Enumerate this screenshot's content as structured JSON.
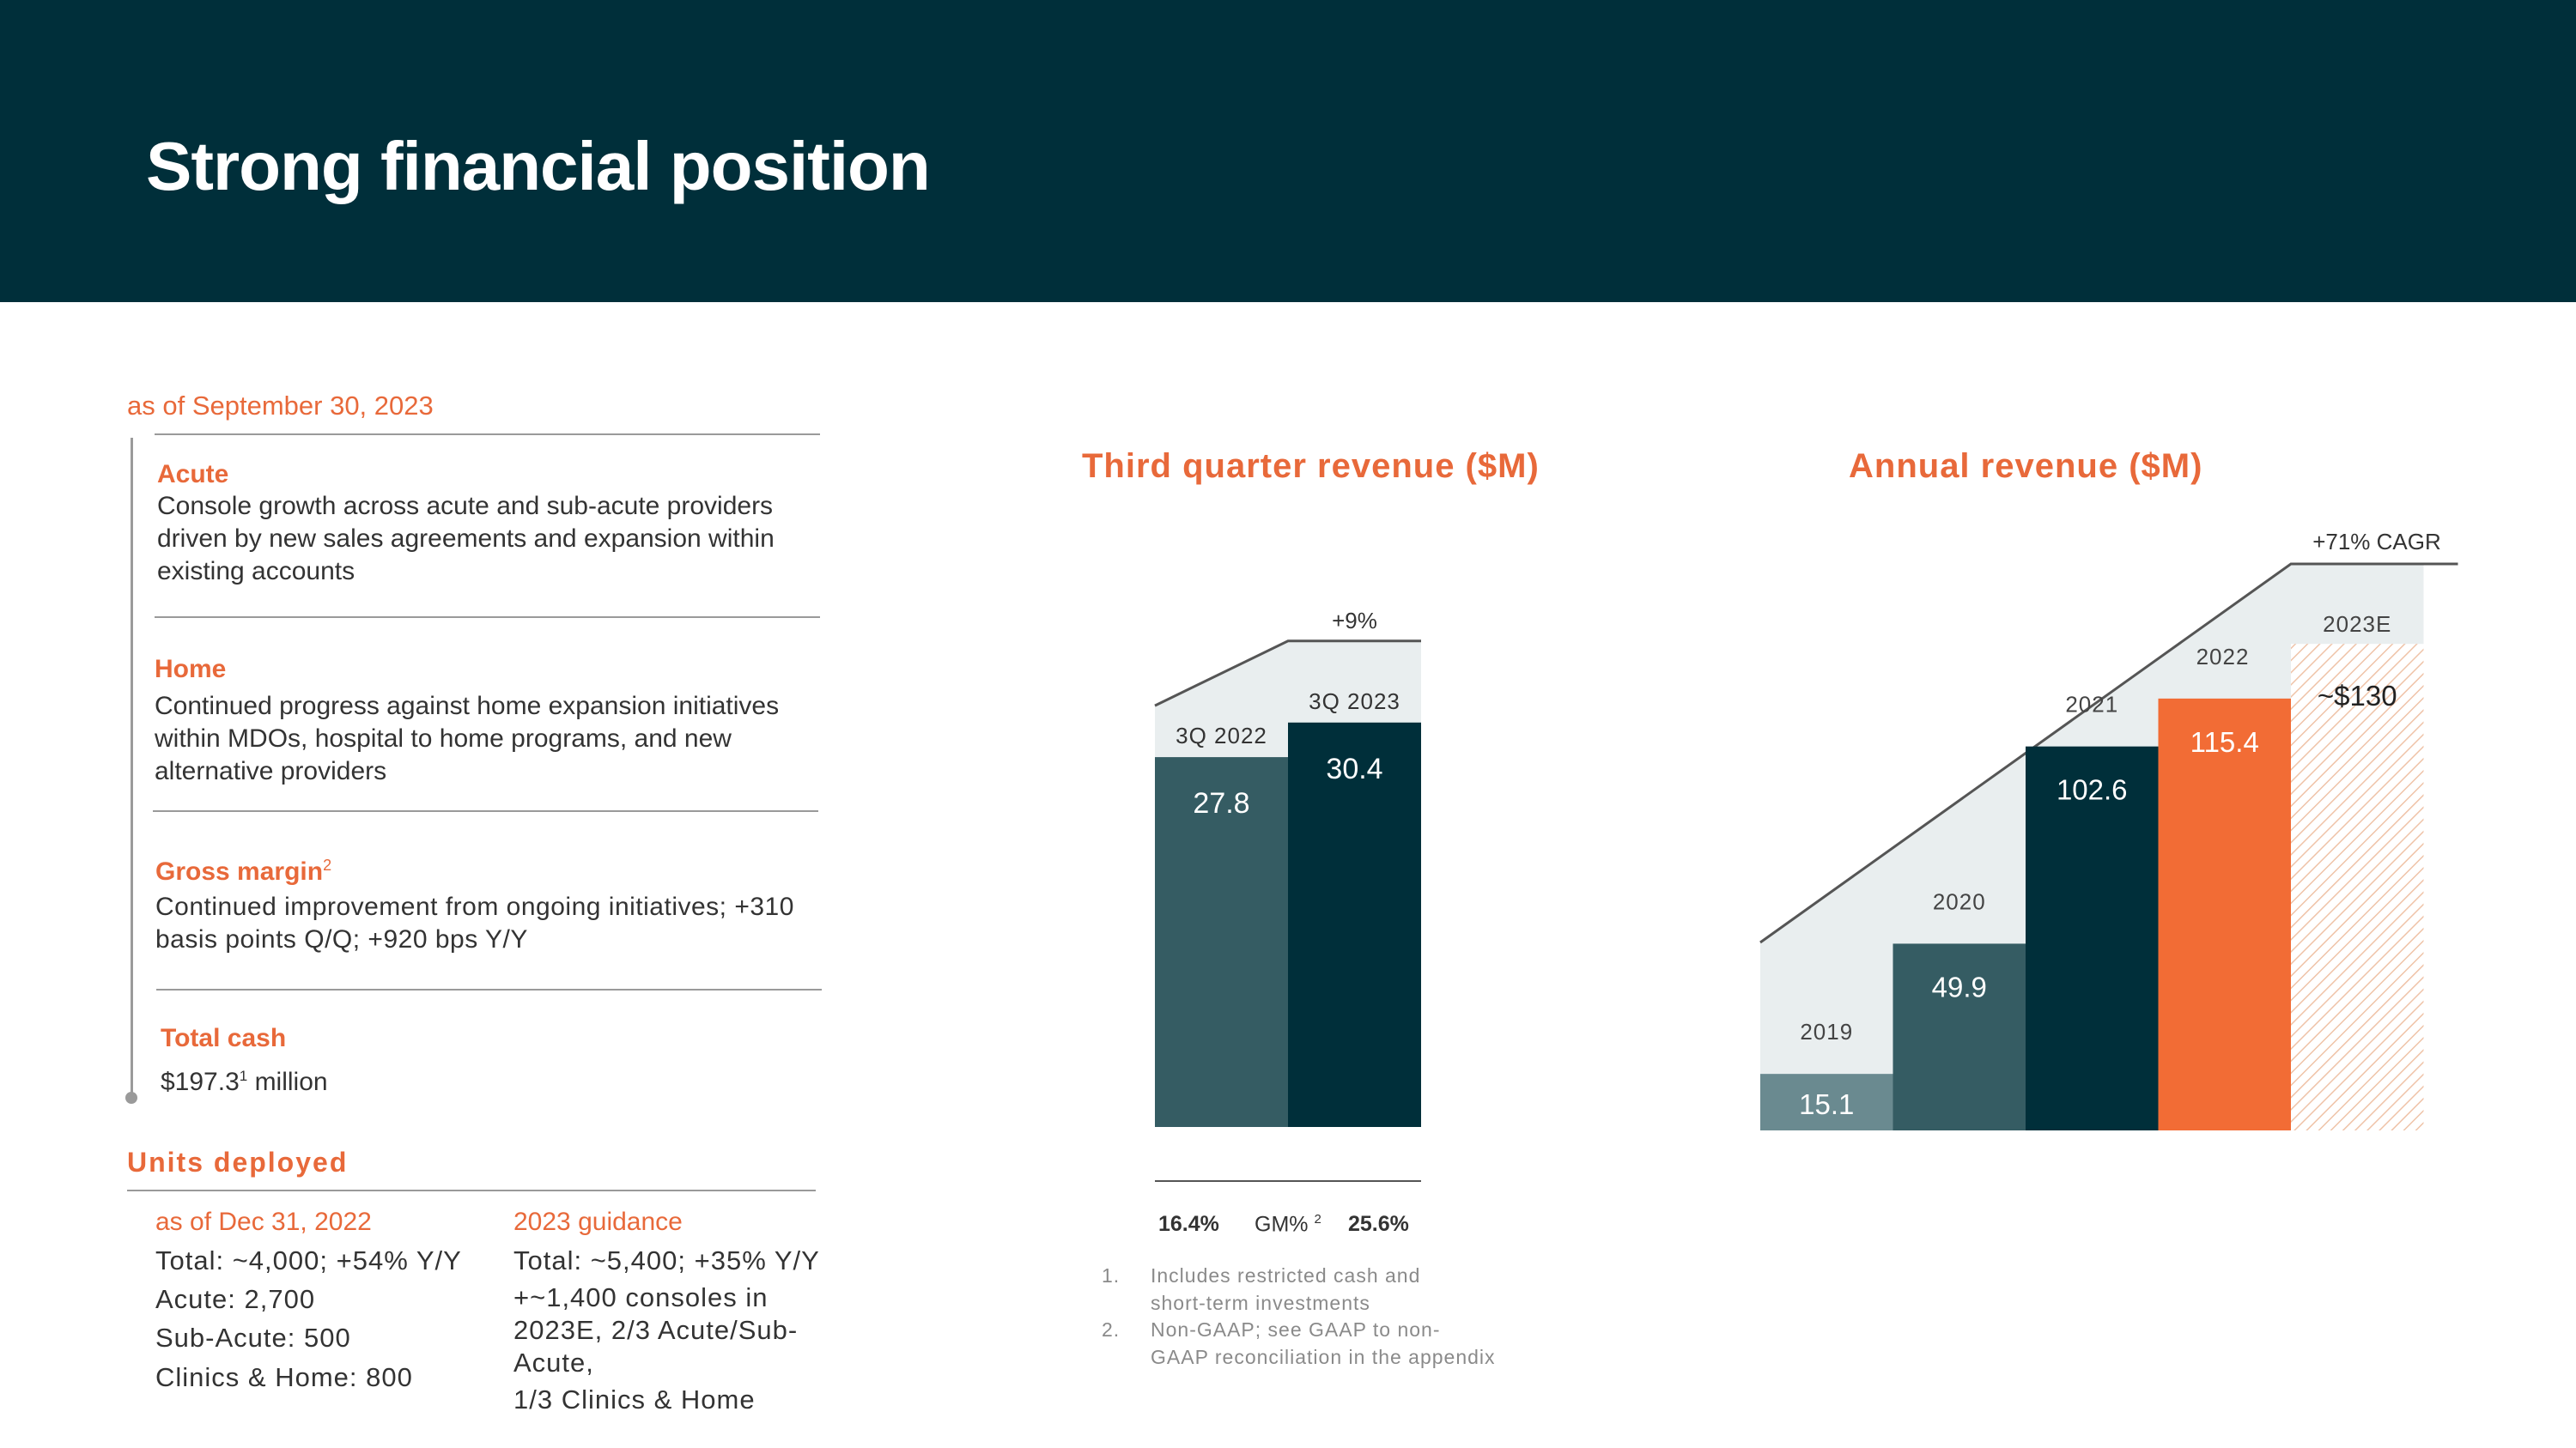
{
  "title": "Strong financial position",
  "as_of": "as of September 30, 2023",
  "sections": [
    {
      "heading": "Acute",
      "text": "Console growth across acute and sub-acute providers driven by new sales agreements and expansion within existing accounts"
    },
    {
      "heading": "Home",
      "text": "Continued progress against home expansion initiatives within MDOs, hospital to home programs, and new alternative providers"
    },
    {
      "heading": "Gross margin",
      "sup": "2",
      "text": "Continued improvement from ongoing initiatives; +310 basis points Q/Q; +920 bps Y/Y"
    },
    {
      "heading": "Total cash",
      "text_main": "$197.3",
      "text_sup": "1",
      "text_rest": " million"
    }
  ],
  "units": {
    "heading": "Units deployed",
    "left": {
      "heading": "as of Dec 31, 2022",
      "lines": [
        "Total: ~4,000; +54% Y/Y",
        "Acute: 2,700",
        "Sub-Acute: 500",
        "Clinics & Home: 800"
      ]
    },
    "right": {
      "heading": "2023 guidance",
      "lines": [
        "Total: ~5,400; +35% Y/Y",
        "+~1,400 consoles in",
        "2023E, 2/3 Acute/Sub-",
        "Acute,",
        "1/3 Clinics & Home"
      ]
    }
  },
  "gm": {
    "left": "16.4%",
    "label": "GM%",
    "sup": "2",
    "right": "25.6%"
  },
  "footnotes": [
    {
      "num": "1.",
      "lines": [
        "Includes restricted cash and",
        "short-term investments"
      ]
    },
    {
      "num": "2.",
      "lines": [
        "Non-GAAP; see GAAP to non-",
        "GAAP reconciliation in the appendix"
      ]
    }
  ],
  "colors": {
    "navy": "#002f3a",
    "teal": "#355c63",
    "orange": "#f26c35",
    "light": "#e9eeef",
    "gray": "#6a8a90"
  },
  "chart_data": [
    {
      "type": "bar",
      "title": "Third quarter revenue ($M)",
      "categories": [
        "3Q 2022",
        "3Q 2023"
      ],
      "values": [
        27.8,
        30.4
      ],
      "value_labels": [
        "27.8",
        "30.4"
      ],
      "annotation": "+9%",
      "ylim": [
        0,
        32
      ]
    },
    {
      "type": "bar",
      "title": "Annual revenue ($M)",
      "categories": [
        "2019",
        "2020",
        "2021",
        "2022",
        "2023E"
      ],
      "values": [
        15.1,
        49.9,
        102.6,
        115.4,
        130
      ],
      "value_labels": [
        "15.1",
        "49.9",
        "102.6",
        "115.4",
        "~$130"
      ],
      "estimate": [
        false,
        false,
        false,
        false,
        true
      ],
      "annotation": "+71% CAGR",
      "ylim": [
        0,
        130
      ]
    }
  ]
}
